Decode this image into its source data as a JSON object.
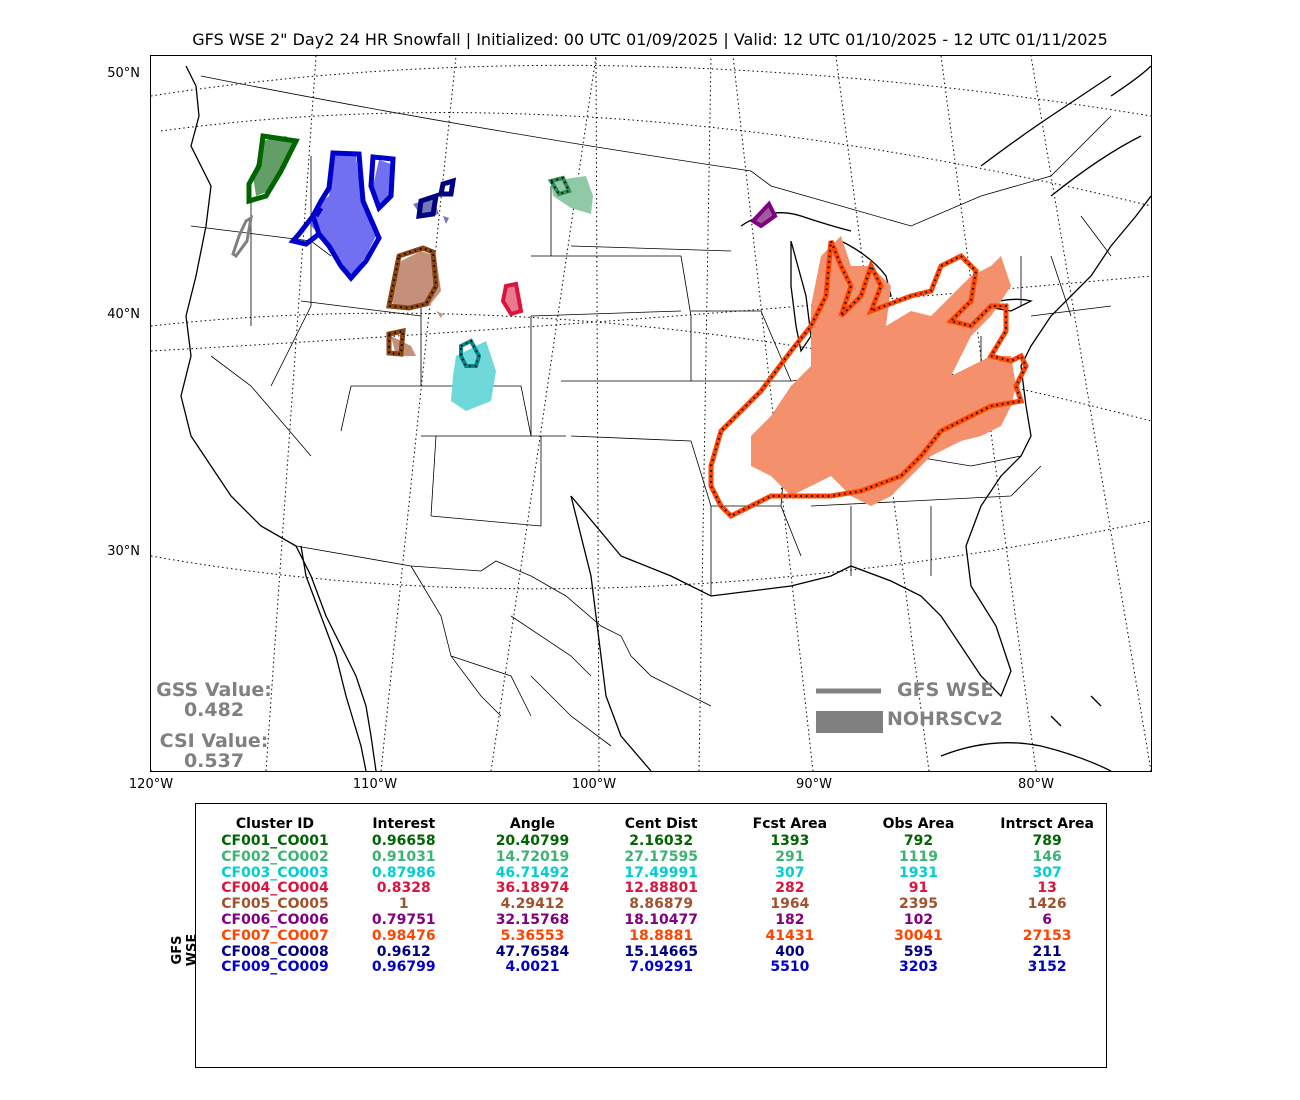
{
  "title": "GFS WSE 2\" Day2 24 HR Snowfall | Initialized: 00 UTC 01/09/2025 | Valid: 12 UTC 01/10/2025 - 12 UTC 01/11/2025",
  "lat_labels": [
    "50°N",
    "40°N",
    "30°N"
  ],
  "lon_labels": [
    "120°W",
    "110°W",
    "100°W",
    "90°W",
    "80°W"
  ],
  "scores": {
    "gss_label": "GSS Value:",
    "gss_value": "0.482",
    "csi_label": "CSI Value:",
    "csi_value": "0.537"
  },
  "legend": {
    "forecast_label": "GFS WSE",
    "observed_label": "NOHRSCv2",
    "color": "#808080"
  },
  "table": {
    "side_label": "GFS WSE",
    "headers": [
      "Cluster ID",
      "Interest",
      "Angle",
      "Cent Dist",
      "Fcst Area",
      "Obs Area",
      "Intrsct Area"
    ],
    "rows": [
      {
        "color": "#006400",
        "cells": [
          "CF001_CO001",
          "0.96658",
          "20.40799",
          "2.16032",
          "1393",
          "792",
          "789"
        ]
      },
      {
        "color": "#3cb371",
        "cells": [
          "CF002_CO002",
          "0.91031",
          "14.72019",
          "27.17595",
          "291",
          "1119",
          "146"
        ]
      },
      {
        "color": "#00ced1",
        "cells": [
          "CF003_CO003",
          "0.87986",
          "46.71492",
          "17.49991",
          "307",
          "1931",
          "307"
        ]
      },
      {
        "color": "#dc143c",
        "cells": [
          "CF004_CO004",
          "0.8328",
          "36.18974",
          "12.88801",
          "282",
          "91",
          "13"
        ]
      },
      {
        "color": "#a0522d",
        "cells": [
          "CF005_CO005",
          "1",
          "4.29412",
          "8.86879",
          "1964",
          "2395",
          "1426"
        ]
      },
      {
        "color": "#800080",
        "cells": [
          "CF006_CO006",
          "0.79751",
          "32.15768",
          "18.10477",
          "182",
          "102",
          "6"
        ]
      },
      {
        "color": "#ff4500",
        "cells": [
          "CF007_CO007",
          "0.98476",
          "5.36553",
          "18.8881",
          "41431",
          "30041",
          "27153"
        ]
      },
      {
        "color": "#000080",
        "cells": [
          "CF008_CO008",
          "0.9612",
          "47.76584",
          "15.14665",
          "400",
          "595",
          "211"
        ]
      },
      {
        "color": "#0000cd",
        "cells": [
          "CF009_CO009",
          "0.96799",
          "4.0021",
          "7.09291",
          "5510",
          "3203",
          "3152"
        ]
      }
    ]
  },
  "clusters": [
    {
      "id": "CF001",
      "edge": "#006400",
      "fill": "#2e7d32",
      "dotted": false
    },
    {
      "id": "CF002",
      "edge": "#2e8b57",
      "fill": "#8fc9a6",
      "dotted": true
    },
    {
      "id": "CF003",
      "edge": "#008b8b",
      "fill": "#6fd8d8",
      "dotted": true
    },
    {
      "id": "CF004",
      "edge": "#dc143c",
      "fill": "#e87a90",
      "dotted": false
    },
    {
      "id": "CF005",
      "edge": "#8b4513",
      "fill": "#c4907a",
      "dotted": true
    },
    {
      "id": "CF006",
      "edge": "#800080",
      "fill": "#a05aa0",
      "dotted": false
    },
    {
      "id": "CF007",
      "edge": "#ff4500",
      "fill": "#f4906c",
      "dotted": true
    },
    {
      "id": "CF008",
      "edge": "#000080",
      "fill": "#7777bb",
      "dotted": false
    },
    {
      "id": "CF009",
      "edge": "#0000cd",
      "fill": "#7070f0",
      "dotted": false
    },
    {
      "id": "GRAY",
      "edge": "#808080",
      "fill": "none",
      "dotted": false
    }
  ]
}
